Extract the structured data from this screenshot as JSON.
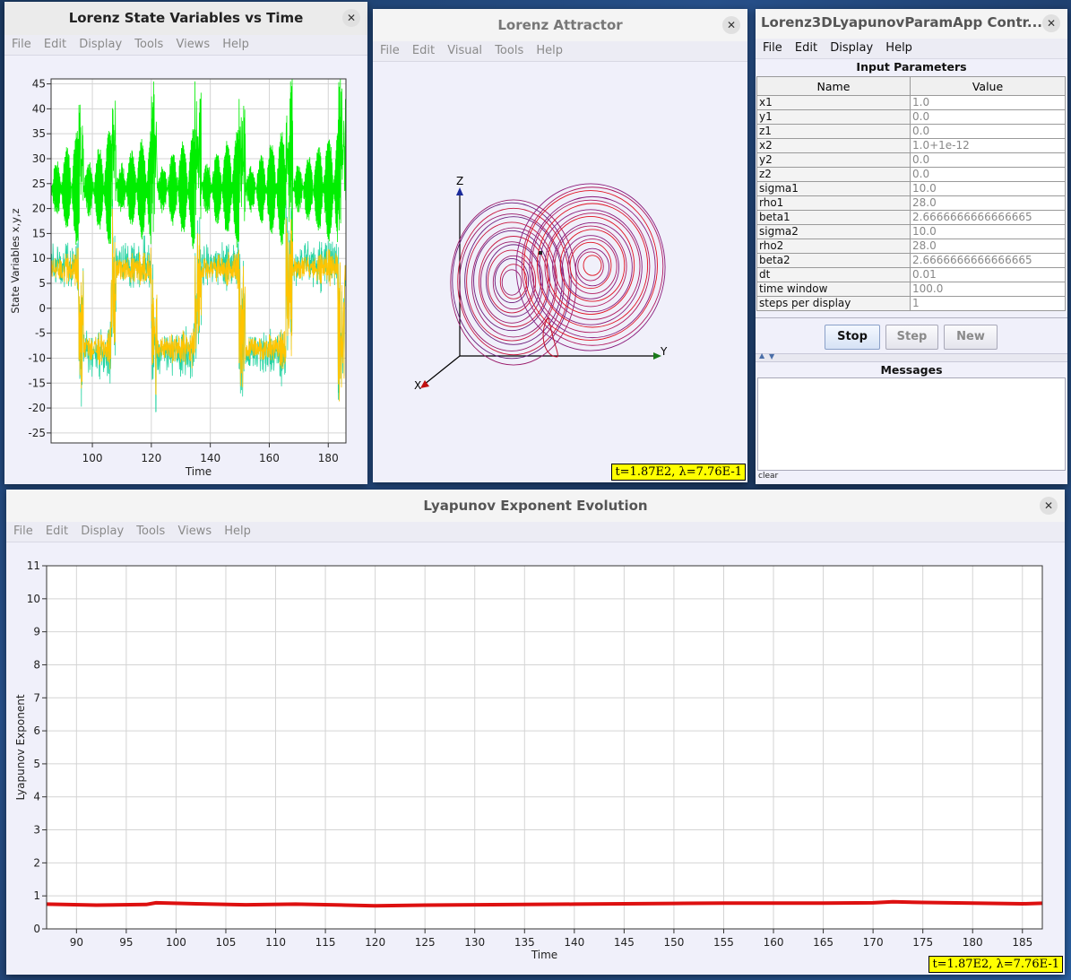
{
  "state_window": {
    "title": "Lorenz State Variables vs Time",
    "menu": [
      "File",
      "Edit",
      "Display",
      "Tools",
      "Views",
      "Help"
    ]
  },
  "attractor_window": {
    "title": "Lorenz Attractor",
    "menu": [
      "File",
      "Edit",
      "Visual",
      "Tools",
      "Help"
    ],
    "axis_labels": {
      "x": "X",
      "y": "Y",
      "z": "Z"
    },
    "status": "t=1.87E2, λ=7.76E-1"
  },
  "control_window": {
    "title": "Lorenz3DLyapunovParamApp Contr...",
    "menu": [
      "File",
      "Edit",
      "Display",
      "Help"
    ],
    "section_title": "Input Parameters",
    "columns": [
      "Name",
      "Value"
    ],
    "params": [
      {
        "name": "x1",
        "value": "1.0"
      },
      {
        "name": "y1",
        "value": "0.0"
      },
      {
        "name": "z1",
        "value": "0.0"
      },
      {
        "name": "x2",
        "value": "1.0+1e-12"
      },
      {
        "name": "y2",
        "value": "0.0"
      },
      {
        "name": "z2",
        "value": "0.0"
      },
      {
        "name": "sigma1",
        "value": "10.0"
      },
      {
        "name": "rho1",
        "value": "28.0"
      },
      {
        "name": "beta1",
        "value": "2.6666666666666665"
      },
      {
        "name": "sigma2",
        "value": "10.0"
      },
      {
        "name": "rho2",
        "value": "28.0"
      },
      {
        "name": "beta2",
        "value": "2.6666666666666665"
      },
      {
        "name": "dt",
        "value": "0.01"
      },
      {
        "name": "time window",
        "value": "100.0"
      },
      {
        "name": "steps per display",
        "value": "1"
      }
    ],
    "buttons": {
      "stop": "Stop",
      "step": "Step",
      "new": "New"
    },
    "messages_title": "Messages",
    "clear_label": "clear"
  },
  "lyapunov_window": {
    "title": "Lyapunov Exponent Evolution",
    "menu": [
      "File",
      "Edit",
      "Display",
      "Tools",
      "Views",
      "Help"
    ],
    "status": "t=1.87E2, λ=7.76E-1"
  },
  "colors": {
    "x_series": "#ffc400",
    "y_series": "#22d3a0",
    "z_series": "#00ee00",
    "lyapunov": "#dd1010",
    "status_bg": "#ffff00"
  },
  "chart_data": [
    {
      "type": "line",
      "xlabel": "Time",
      "ylabel": "State Variables x,y,z",
      "xlim": [
        86,
        186
      ],
      "ylim": [
        -27,
        46
      ],
      "x_ticks": [
        100,
        120,
        140,
        160,
        180
      ],
      "y_ticks": [
        -25,
        -20,
        -15,
        -10,
        -5,
        0,
        5,
        10,
        15,
        20,
        25,
        30,
        35,
        40,
        45
      ]
    },
    {
      "type": "line",
      "xlabel": "Time",
      "ylabel": "Lyapunov Exponent",
      "xlim": [
        87,
        187
      ],
      "ylim": [
        0,
        11
      ],
      "x_ticks": [
        90,
        95,
        100,
        105,
        110,
        115,
        120,
        125,
        130,
        135,
        140,
        145,
        150,
        155,
        160,
        165,
        170,
        175,
        180,
        185
      ],
      "y_ticks": [
        0,
        1,
        2,
        3,
        4,
        5,
        6,
        7,
        8,
        9,
        10,
        11
      ],
      "series": [
        {
          "x": [
            87,
            92,
            97,
            98,
            102,
            107,
            112,
            117,
            120,
            125,
            130,
            135,
            140,
            145,
            150,
            155,
            160,
            165,
            170,
            172,
            175,
            180,
            185,
            187
          ],
          "values": [
            0.75,
            0.72,
            0.74,
            0.79,
            0.76,
            0.73,
            0.75,
            0.72,
            0.7,
            0.72,
            0.73,
            0.74,
            0.75,
            0.76,
            0.77,
            0.78,
            0.78,
            0.78,
            0.79,
            0.82,
            0.8,
            0.78,
            0.76,
            0.776
          ]
        }
      ]
    }
  ]
}
